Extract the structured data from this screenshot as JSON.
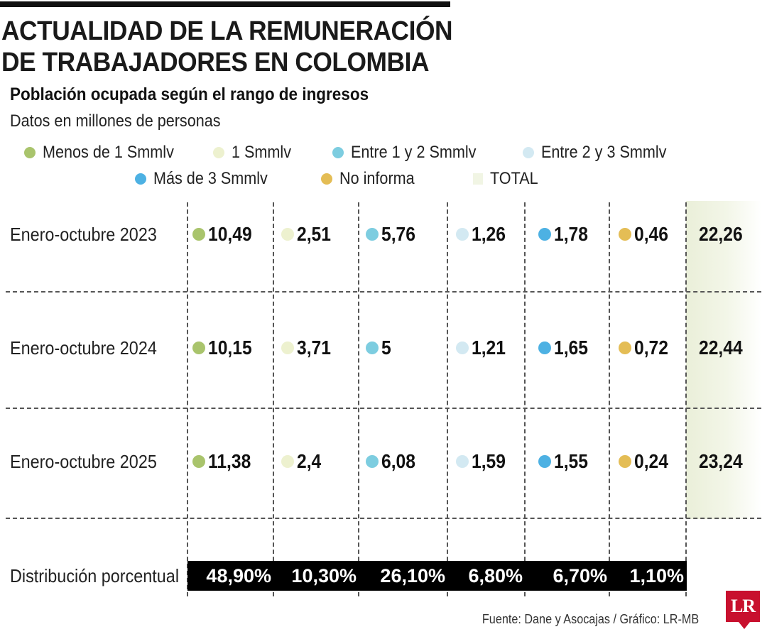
{
  "header": {
    "title_line1": "ACTUALIDAD DE LA REMUNERACIÓN",
    "title_line2": "DE TRABAJADORES EN COLOMBIA",
    "subtitle": "Población ocupada según el rango de ingresos",
    "units": "Datos en millones de personas"
  },
  "legend": [
    {
      "label": "Menos de 1 Smmlv",
      "color": "#a9c46c",
      "shape": "dot"
    },
    {
      "label": "1 Smmlv",
      "color": "#edf1cf",
      "shape": "dot"
    },
    {
      "label": "Entre 1 y 2 Smmlv",
      "color": "#7dcde0",
      "shape": "dot"
    },
    {
      "label": "Entre 2 y 3 Smmlv",
      "color": "#d3e9f2",
      "shape": "dot"
    },
    {
      "label": "Más de 3 Smmlv",
      "color": "#4db1e3",
      "shape": "dot"
    },
    {
      "label": "No informa",
      "color": "#e4bd55",
      "shape": "dot"
    },
    {
      "label": "TOTAL",
      "color": "#f1f5e4",
      "shape": "square"
    }
  ],
  "chart_data": {
    "type": "table",
    "columns": [
      "Menos de 1 Smmlv",
      "1 Smmlv",
      "Entre 1 y 2 Smmlv",
      "Entre 2 y 3 Smmlv",
      "Más de 3 Smmlv",
      "No informa",
      "TOTAL"
    ],
    "rows": [
      {
        "label": "Enero-octubre 2023",
        "values": [
          "10,49",
          "2,51",
          "5,76",
          "1,26",
          "1,78",
          "0,46"
        ],
        "total": "22,26"
      },
      {
        "label": "Enero-octubre 2024",
        "values": [
          "10,15",
          "3,71",
          "5",
          "1,21",
          "1,65",
          "0,72"
        ],
        "total": "22,44"
      },
      {
        "label": "Enero-octubre 2025",
        "values": [
          "11,38",
          "2,4",
          "6,08",
          "1,59",
          "1,55",
          "0,24"
        ],
        "total": "23,24"
      }
    ],
    "distribution": {
      "label": "Distribución porcentual",
      "values": [
        "48,90%",
        "10,30%",
        "26,10%",
        "6,80%",
        "6,70%",
        "1,10%"
      ]
    }
  },
  "footer": {
    "source": "Fuente: Dane y Asocajas / Gráfico: LR-MB",
    "logo_text": "LR"
  }
}
